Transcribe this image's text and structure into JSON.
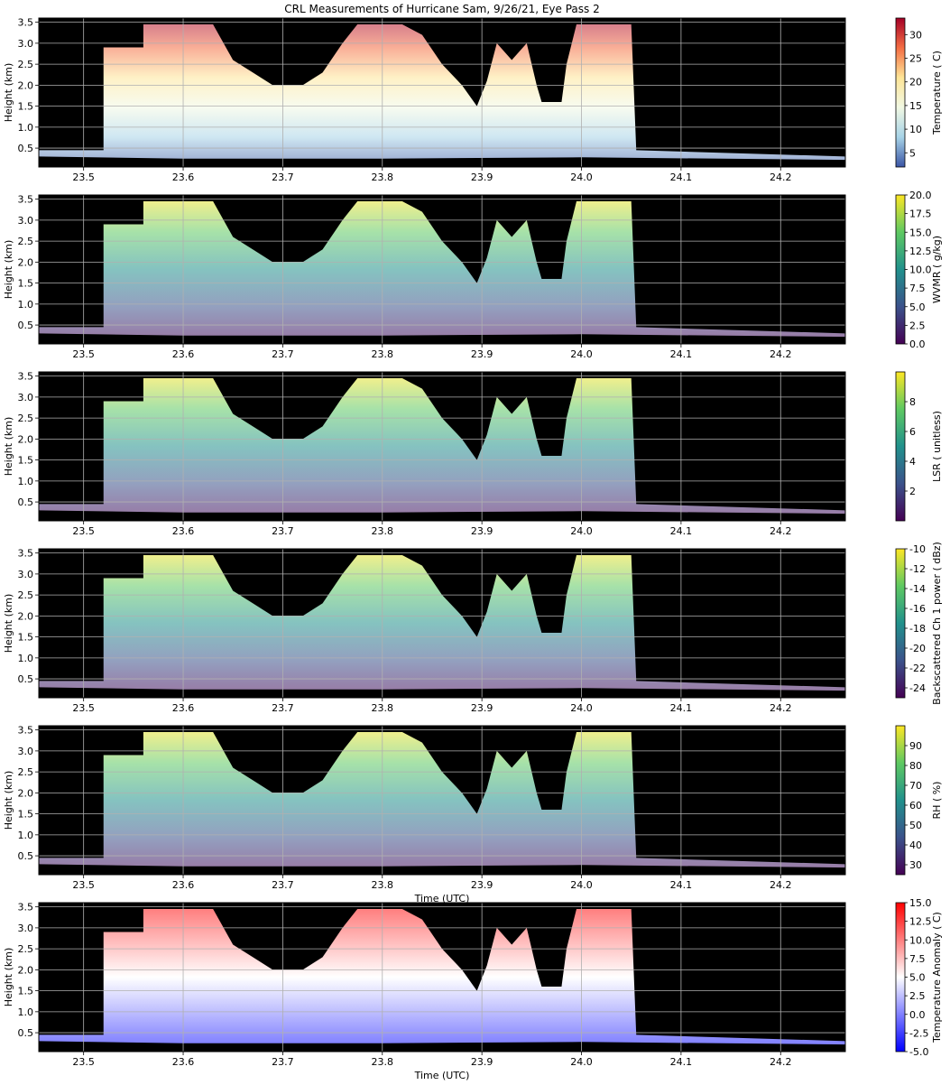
{
  "figure": {
    "title": "CRL Measurements of Hurricane Sam, 9/26/21, Eye Pass 2"
  },
  "chart_data": [
    {
      "type": "heatmap",
      "ylabel": "Height (km)",
      "xlabel": "",
      "xlim": [
        23.455,
        24.265
      ],
      "ylim": [
        0.05,
        3.6
      ],
      "xticks": [
        "23.5",
        "23.6",
        "23.7",
        "23.8",
        "23.9",
        "24.0",
        "24.1",
        "24.2"
      ],
      "yticks": [
        "0.5",
        "1.0",
        "1.5",
        "2.0",
        "2.5",
        "3.0",
        "3.5"
      ],
      "grid": true,
      "colorbar": {
        "label": "Temperature ( C)",
        "min": 2,
        "max": 33.5,
        "ticks": [
          "5",
          "10",
          "15",
          "20",
          "25",
          "30"
        ],
        "colors": [
          "#3a55a5",
          "#a7d3e7",
          "#f1f8e3",
          "#fee597",
          "#f46d43",
          "#a50026"
        ]
      }
    },
    {
      "type": "heatmap",
      "ylabel": "Height (km)",
      "xlabel": "",
      "xlim": [
        23.455,
        24.265
      ],
      "ylim": [
        0.05,
        3.6
      ],
      "xticks": [
        "23.5",
        "23.6",
        "23.7",
        "23.8",
        "23.9",
        "24.0",
        "24.1",
        "24.2"
      ],
      "yticks": [
        "0.5",
        "1.0",
        "1.5",
        "2.0",
        "2.5",
        "3.0",
        "3.5"
      ],
      "grid": true,
      "colorbar": {
        "label": "WVMR ( g/kg)",
        "min": 0,
        "max": 20,
        "ticks": [
          "0.0",
          "2.5",
          "5.0",
          "7.5",
          "10.0",
          "12.5",
          "15.0",
          "17.5",
          "20.0"
        ],
        "colors": [
          "#440154",
          "#3b528b",
          "#21918c",
          "#5ec962",
          "#fde725"
        ]
      }
    },
    {
      "type": "heatmap",
      "ylabel": "Height (km)",
      "xlabel": "",
      "xlim": [
        23.455,
        24.265
      ],
      "ylim": [
        0.05,
        3.6
      ],
      "xticks": [
        "23.5",
        "23.6",
        "23.7",
        "23.8",
        "23.9",
        "24.0",
        "24.1",
        "24.2"
      ],
      "yticks": [
        "0.5",
        "1.0",
        "1.5",
        "2.0",
        "2.5",
        "3.0",
        "3.5"
      ],
      "grid": true,
      "colorbar": {
        "label": "LSR ( unitless)",
        "min": 0,
        "max": 10,
        "ticks": [
          "2",
          "4",
          "6",
          "8"
        ],
        "colors": [
          "#440154",
          "#3b528b",
          "#21918c",
          "#5ec962",
          "#fde725"
        ]
      }
    },
    {
      "type": "heatmap",
      "ylabel": "Height (km)",
      "xlabel": "",
      "xlim": [
        23.455,
        24.265
      ],
      "ylim": [
        0.05,
        3.6
      ],
      "xticks": [
        "23.5",
        "23.6",
        "23.7",
        "23.8",
        "23.9",
        "24.0",
        "24.1",
        "24.2"
      ],
      "yticks": [
        "0.5",
        "1.0",
        "1.5",
        "2.0",
        "2.5",
        "3.0",
        "3.5"
      ],
      "grid": true,
      "colorbar": {
        "label": "Backscattered Ch 1 power ( dBz)",
        "min": -25,
        "max": -10,
        "ticks": [
          "-24",
          "-22",
          "-20",
          "-18",
          "-16",
          "-14",
          "-12",
          "-10"
        ],
        "colors": [
          "#440154",
          "#3b528b",
          "#21918c",
          "#5ec962",
          "#fde725"
        ]
      }
    },
    {
      "type": "heatmap",
      "ylabel": "Height (km)",
      "xlabel": "Time (UTC)",
      "xlim": [
        23.455,
        24.265
      ],
      "ylim": [
        0.05,
        3.6
      ],
      "xticks": [
        "23.5",
        "23.6",
        "23.7",
        "23.8",
        "23.9",
        "24.0",
        "24.1",
        "24.2"
      ],
      "yticks": [
        "0.5",
        "1.0",
        "1.5",
        "2.0",
        "2.5",
        "3.0",
        "3.5"
      ],
      "grid": true,
      "colorbar": {
        "label": "RH ( %)",
        "min": 25,
        "max": 100,
        "ticks": [
          "30",
          "40",
          "50",
          "60",
          "70",
          "80",
          "90"
        ],
        "colors": [
          "#440154",
          "#3b528b",
          "#21918c",
          "#5ec962",
          "#fde725"
        ]
      }
    },
    {
      "type": "heatmap",
      "ylabel": "Height (km)",
      "xlabel": "Time (UTC)",
      "xlim": [
        23.455,
        24.265
      ],
      "ylim": [
        0.05,
        3.6
      ],
      "xticks": [
        "23.5",
        "23.6",
        "23.7",
        "23.8",
        "23.9",
        "24.0",
        "24.1",
        "24.2"
      ],
      "yticks": [
        "0.5",
        "1.0",
        "1.5",
        "2.0",
        "2.5",
        "3.0",
        "3.5"
      ],
      "grid": true,
      "colorbar": {
        "label": "Temperature Anomaly ( C)",
        "min": -5,
        "max": 15,
        "ticks": [
          "-5.0",
          "-2.5",
          "0.0",
          "2.5",
          "5.0",
          "7.5",
          "10.0",
          "12.5",
          "15.0"
        ],
        "colors": [
          "#0000ff",
          "#ffffff",
          "#ff0000"
        ]
      }
    }
  ]
}
